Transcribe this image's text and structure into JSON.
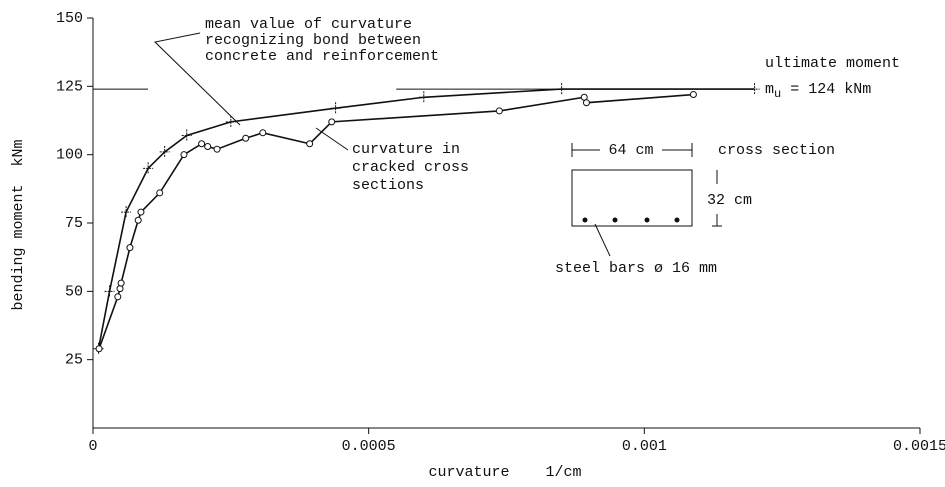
{
  "chart_data": {
    "type": "line",
    "x_label": "curvature    1/cm",
    "y_label": "bending moment  kNm",
    "xlim": [
      0,
      0.0015
    ],
    "xticks": [
      0,
      0.0005,
      0.001,
      0.0015
    ],
    "ylim": [
      0,
      150
    ],
    "yticks": [
      25,
      50,
      75,
      100,
      125,
      150
    ],
    "series": [
      {
        "name": "mean value of curvature recognizing bond between concrete and reinforcement",
        "color": "#111111",
        "marker": "cross",
        "x": [
          1e-05,
          3e-05,
          6e-05,
          0.0001,
          0.00013,
          0.00017,
          0.00025,
          0.00044,
          0.0006,
          0.00085,
          0.0012
        ],
        "values": [
          29,
          50,
          79,
          95,
          101,
          107,
          112,
          117,
          121,
          124,
          124
        ]
      },
      {
        "name": "curvature in cracked cross sections",
        "color": "#111111",
        "marker": "circle",
        "x": [
          1.1e-05,
          4.5e-05,
          4.9e-05,
          5.1e-05,
          6.7e-05,
          8.2e-05,
          8.7e-05,
          0.000121,
          0.000165,
          0.000197,
          0.000208,
          0.000225,
          0.000277,
          0.000308,
          0.000393,
          0.000433,
          0.000737,
          0.000891,
          0.000895,
          0.001089
        ],
        "values": [
          29,
          48,
          51,
          53,
          66,
          76,
          79,
          86,
          100,
          104,
          103,
          102,
          106,
          108,
          104,
          112,
          116,
          121,
          119,
          122
        ]
      }
    ],
    "ultimate_moment": {
      "label": "ultimate moment",
      "symbol": "m",
      "subscript": "u",
      "text": " = 124 kNm",
      "value": 124
    },
    "annotations": {
      "mean": [
        "mean value of curvature",
        "recognizing bond between",
        "concrete and reinforcement"
      ],
      "cracked": [
        "curvature in",
        "cracked cross",
        "sections"
      ]
    },
    "cross_section": {
      "title": "cross section",
      "width": "64 cm",
      "height": "32 cm",
      "bars": "steel bars ø 16 mm"
    }
  }
}
